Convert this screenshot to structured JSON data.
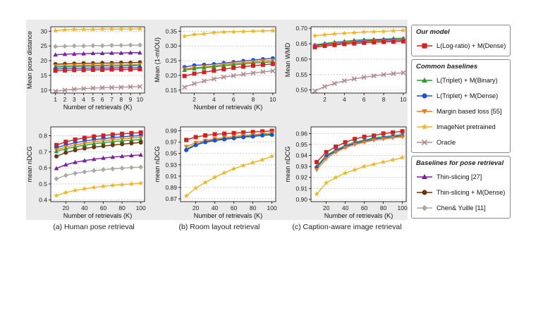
{
  "captions": [
    "(a) Human pose retrieval",
    "(b) Room layout retrieval",
    "(c) Caption-aware image retrieval"
  ],
  "series_styles": {
    "ours": {
      "color": "#d42020",
      "marker": "square"
    },
    "tb": {
      "color": "#2a9a2a",
      "marker": "triangle-up"
    },
    "td": {
      "color": "#1f4fd6",
      "marker": "circle"
    },
    "margin": {
      "color": "#f07a1a",
      "marker": "triangle-down"
    },
    "imagenet": {
      "color": "#f5b31f",
      "marker": "star"
    },
    "oracle": {
      "color": "#b48a90",
      "marker": "x"
    },
    "thin": {
      "color": "#7a1fa0",
      "marker": "triangle-up"
    },
    "thind": {
      "color": "#6b3608",
      "marker": "circle"
    },
    "chen": {
      "color": "#a9a9a0",
      "marker": "diamond"
    }
  },
  "legend": [
    {
      "title": "Our model",
      "items": [
        {
          "key": "ours",
          "label": "L(Log-ratio) + M(Dense)"
        }
      ]
    },
    {
      "title": "Common baselines",
      "items": [
        {
          "key": "tb",
          "label": "L(Triplet) + M(Binary)"
        },
        {
          "key": "td",
          "label": "L(Triplet) + M(Dense)"
        },
        {
          "key": "margin",
          "label": "Margin based loss [55]"
        },
        {
          "key": "imagenet",
          "label": "ImageNet pretrained"
        },
        {
          "key": "oracle",
          "label": "Oracle"
        }
      ]
    },
    {
      "title": "Baselines for pose retrieval",
      "items": [
        {
          "key": "thin",
          "label": "Thin-slicing [27]"
        },
        {
          "key": "thind",
          "label": "Thin-slicing + M(Dense)"
        },
        {
          "key": "chen",
          "label": "Chen& Yuille [11]"
        }
      ]
    }
  ],
  "chart_data": [
    {
      "type": "line",
      "xlabel": "Number of retrievals (K)",
      "ylabel": "Mean pose distance",
      "xlim": [
        0.5,
        10.5
      ],
      "ylim": [
        9,
        31.5
      ],
      "xticks": [
        1,
        2,
        3,
        4,
        5,
        6,
        7,
        8,
        9,
        10
      ],
      "yticks": [
        10,
        15,
        20,
        25,
        30
      ],
      "ytick_decimals": 0,
      "x": [
        1,
        2,
        3,
        4,
        5,
        6,
        7,
        8,
        9,
        10
      ],
      "series": [
        {
          "key": "imagenet",
          "values": [
            30.2,
            30.5,
            30.6,
            30.6,
            30.6,
            30.7,
            30.7,
            30.7,
            30.7,
            30.8
          ]
        },
        {
          "key": "chen",
          "values": [
            24.8,
            24.9,
            25.0,
            25.0,
            25.1,
            25.1,
            25.2,
            25.2,
            25.3,
            25.3
          ]
        },
        {
          "key": "thin",
          "values": [
            22.0,
            22.2,
            22.3,
            22.4,
            22.5,
            22.5,
            22.6,
            22.6,
            22.7,
            22.7
          ]
        },
        {
          "key": "thind",
          "values": [
            18.8,
            18.9,
            19.0,
            19.1,
            19.1,
            19.2,
            19.2,
            19.3,
            19.3,
            19.4
          ]
        },
        {
          "key": "margin",
          "values": [
            18.2,
            18.3,
            18.4,
            18.4,
            18.5,
            18.5,
            18.6,
            18.6,
            18.6,
            18.7
          ]
        },
        {
          "key": "tb",
          "values": [
            17.8,
            17.9,
            18.0,
            18.1,
            18.1,
            18.2,
            18.2,
            18.2,
            18.3,
            18.3
          ]
        },
        {
          "key": "td",
          "values": [
            17.2,
            17.3,
            17.4,
            17.4,
            17.5,
            17.5,
            17.5,
            17.6,
            17.6,
            17.6
          ]
        },
        {
          "key": "ours",
          "values": [
            16.6,
            16.7,
            16.8,
            16.8,
            16.9,
            16.9,
            17.0,
            17.0,
            17.0,
            17.1
          ]
        },
        {
          "key": "oracle",
          "values": [
            9.6,
            10.0,
            10.3,
            10.5,
            10.7,
            10.8,
            10.9,
            11.0,
            11.1,
            11.2
          ]
        }
      ]
    },
    {
      "type": "line",
      "xlabel": "Number of retrievals (K)",
      "ylabel": "Mean (1-mIOU)",
      "xlim": [
        0.6,
        10.3
      ],
      "ylim": [
        0.14,
        0.365
      ],
      "xticks": [
        2,
        4,
        6,
        8,
        10
      ],
      "yticks": [
        0.15,
        0.2,
        0.25,
        0.3,
        0.35
      ],
      "ytick_decimals": 2,
      "x": [
        1,
        2,
        3,
        4,
        5,
        6,
        7,
        8,
        9,
        10
      ],
      "series": [
        {
          "key": "imagenet",
          "values": [
            0.333,
            0.339,
            0.341,
            0.345,
            0.347,
            0.348,
            0.349,
            0.35,
            0.351,
            0.352
          ]
        },
        {
          "key": "td",
          "values": [
            0.228,
            0.234,
            0.236,
            0.238,
            0.242,
            0.245,
            0.249,
            0.252,
            0.255,
            0.258
          ]
        },
        {
          "key": "margin",
          "values": [
            0.222,
            0.226,
            0.229,
            0.232,
            0.237,
            0.24,
            0.243,
            0.246,
            0.249,
            0.251
          ]
        },
        {
          "key": "tb",
          "values": [
            0.218,
            0.223,
            0.226,
            0.229,
            0.233,
            0.236,
            0.239,
            0.242,
            0.244,
            0.246
          ]
        },
        {
          "key": "ours",
          "values": [
            0.198,
            0.206,
            0.211,
            0.216,
            0.221,
            0.226,
            0.23,
            0.233,
            0.236,
            0.239
          ]
        },
        {
          "key": "oracle",
          "values": [
            0.16,
            0.172,
            0.181,
            0.188,
            0.194,
            0.199,
            0.204,
            0.208,
            0.212,
            0.215
          ]
        }
      ]
    },
    {
      "type": "line",
      "xlabel": "",
      "ylabel": "Mean WMD",
      "xlim": [
        0.6,
        10.3
      ],
      "ylim": [
        0.49,
        0.705
      ],
      "xticks": [
        2,
        4,
        6,
        8,
        10
      ],
      "yticks": [
        0.5,
        0.55,
        0.6,
        0.65,
        0.7
      ],
      "ytick_decimals": 2,
      "x": [
        1,
        2,
        3,
        4,
        5,
        6,
        7,
        8,
        9,
        10
      ],
      "series": [
        {
          "key": "imagenet",
          "values": [
            0.676,
            0.679,
            0.682,
            0.684,
            0.686,
            0.688,
            0.689,
            0.69,
            0.692,
            0.693
          ]
        },
        {
          "key": "tb",
          "values": [
            0.646,
            0.651,
            0.655,
            0.658,
            0.661,
            0.663,
            0.664,
            0.665,
            0.667,
            0.668
          ]
        },
        {
          "key": "td",
          "values": [
            0.644,
            0.648,
            0.651,
            0.654,
            0.657,
            0.659,
            0.661,
            0.662,
            0.663,
            0.664
          ]
        },
        {
          "key": "margin",
          "values": [
            0.642,
            0.646,
            0.649,
            0.652,
            0.654,
            0.656,
            0.658,
            0.659,
            0.66,
            0.661
          ]
        },
        {
          "key": "ours",
          "values": [
            0.639,
            0.643,
            0.646,
            0.649,
            0.651,
            0.653,
            0.655,
            0.656,
            0.657,
            0.658
          ]
        },
        {
          "key": "oracle",
          "values": [
            0.497,
            0.511,
            0.521,
            0.53,
            0.536,
            0.541,
            0.546,
            0.55,
            0.553,
            0.556
          ]
        }
      ]
    },
    {
      "type": "line",
      "xlabel": "Number of retrievals (K)",
      "ylabel": "mean nDCG",
      "xlim": [
        4,
        104
      ],
      "ylim": [
        0.39,
        0.855
      ],
      "xticks": [
        20,
        40,
        60,
        80,
        100
      ],
      "yticks": [
        0.4,
        0.5,
        0.6,
        0.7,
        0.8
      ],
      "ytick_decimals": 1,
      "x": [
        10,
        20,
        30,
        40,
        50,
        60,
        70,
        80,
        90,
        100
      ],
      "series": [
        {
          "key": "ours",
          "values": [
            0.742,
            0.762,
            0.776,
            0.787,
            0.795,
            0.801,
            0.807,
            0.812,
            0.816,
            0.82
          ]
        },
        {
          "key": "td",
          "values": [
            0.725,
            0.743,
            0.756,
            0.767,
            0.775,
            0.782,
            0.788,
            0.793,
            0.797,
            0.801
          ]
        },
        {
          "key": "margin",
          "values": [
            0.712,
            0.73,
            0.743,
            0.753,
            0.762,
            0.769,
            0.775,
            0.78,
            0.785,
            0.789
          ]
        },
        {
          "key": "tb",
          "values": [
            0.702,
            0.719,
            0.731,
            0.741,
            0.75,
            0.757,
            0.763,
            0.768,
            0.772,
            0.776
          ]
        },
        {
          "key": "thind",
          "values": [
            0.672,
            0.695,
            0.71,
            0.721,
            0.729,
            0.736,
            0.742,
            0.748,
            0.753,
            0.758
          ]
        },
        {
          "key": "thin",
          "values": [
            0.597,
            0.62,
            0.635,
            0.645,
            0.654,
            0.661,
            0.667,
            0.672,
            0.677,
            0.681
          ]
        },
        {
          "key": "chen",
          "values": [
            0.532,
            0.553,
            0.566,
            0.575,
            0.583,
            0.589,
            0.594,
            0.598,
            0.602,
            0.605
          ]
        },
        {
          "key": "imagenet",
          "values": [
            0.428,
            0.447,
            0.46,
            0.47,
            0.478,
            0.485,
            0.491,
            0.496,
            0.5,
            0.505
          ]
        }
      ]
    },
    {
      "type": "line",
      "xlabel": "Number of retrievals (K)",
      "ylabel": "mean nDCG",
      "xlim": [
        4,
        104
      ],
      "ylim": [
        0.865,
        0.997
      ],
      "xticks": [
        20,
        40,
        60,
        80,
        100
      ],
      "yticks": [
        0.87,
        0.89,
        0.91,
        0.93,
        0.95,
        0.97,
        0.99
      ],
      "ytick_decimals": 2,
      "x": [
        10,
        20,
        30,
        40,
        50,
        60,
        70,
        80,
        90,
        100
      ],
      "series": [
        {
          "key": "ours",
          "values": [
            0.974,
            0.979,
            0.982,
            0.984,
            0.985,
            0.986,
            0.987,
            0.988,
            0.989,
            0.99
          ]
        },
        {
          "key": "margin",
          "values": [
            0.962,
            0.969,
            0.973,
            0.976,
            0.978,
            0.98,
            0.982,
            0.983,
            0.985,
            0.986
          ]
        },
        {
          "key": "tb",
          "values": [
            0.958,
            0.966,
            0.971,
            0.974,
            0.976,
            0.978,
            0.98,
            0.981,
            0.983,
            0.984
          ]
        },
        {
          "key": "td",
          "values": [
            0.956,
            0.965,
            0.97,
            0.973,
            0.975,
            0.977,
            0.979,
            0.98,
            0.982,
            0.983
          ]
        },
        {
          "key": "imagenet",
          "values": [
            0.875,
            0.889,
            0.899,
            0.908,
            0.916,
            0.923,
            0.929,
            0.934,
            0.939,
            0.945
          ]
        }
      ]
    },
    {
      "type": "line",
      "xlabel": "Number of retrievals (K)",
      "ylabel": "mean nDCG",
      "xlim": [
        4,
        104
      ],
      "ylim": [
        0.898,
        0.966
      ],
      "xticks": [
        20,
        40,
        60,
        80,
        100
      ],
      "yticks": [
        0.9,
        0.91,
        0.92,
        0.93,
        0.94,
        0.95,
        0.96
      ],
      "ytick_decimals": 2,
      "x": [
        10,
        20,
        30,
        40,
        50,
        60,
        70,
        80,
        90,
        100
      ],
      "series": [
        {
          "key": "ours",
          "values": [
            0.934,
            0.943,
            0.948,
            0.952,
            0.955,
            0.957,
            0.958,
            0.96,
            0.961,
            0.962
          ]
        },
        {
          "key": "tb",
          "values": [
            0.93,
            0.94,
            0.945,
            0.949,
            0.952,
            0.954,
            0.956,
            0.957,
            0.958,
            0.959
          ]
        },
        {
          "key": "td",
          "values": [
            0.929,
            0.939,
            0.944,
            0.948,
            0.951,
            0.953,
            0.955,
            0.956,
            0.957,
            0.958
          ]
        },
        {
          "key": "margin",
          "values": [
            0.927,
            0.937,
            0.943,
            0.947,
            0.95,
            0.952,
            0.954,
            0.955,
            0.956,
            0.957
          ]
        },
        {
          "key": "imagenet",
          "values": [
            0.905,
            0.915,
            0.92,
            0.924,
            0.927,
            0.93,
            0.932,
            0.934,
            0.936,
            0.938
          ]
        }
      ]
    }
  ]
}
